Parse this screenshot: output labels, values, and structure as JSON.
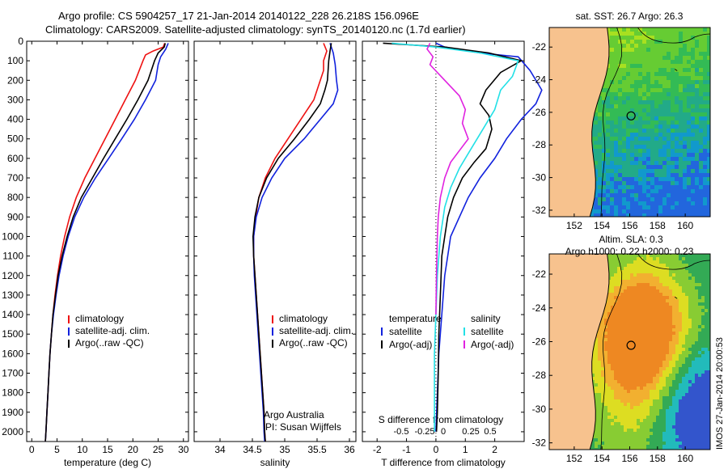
{
  "header": {
    "line1": "Argo profile: CS 5904257_17 21-Jan-2014 20140122_228 26.218S 156.096E",
    "line2": "Climatology: CARS2009. Satellite-adjusted climatology: synTS_20140120.nc (1.7d earlier)"
  },
  "colors": {
    "climatology": "#ee1111",
    "satellite": "#1122dd",
    "argo": "#000000",
    "salinity_sat": "#22e0e6",
    "salinity_argo": "#e022e0"
  },
  "chart_data": [
    {
      "id": "temperature",
      "type": "line",
      "xlabel": "temperature (deg C)",
      "xlim": [
        -1,
        31
      ],
      "xticks": [
        0,
        5,
        10,
        15,
        20,
        25,
        30
      ],
      "ylim": [
        0,
        2050
      ],
      "yticks": [
        0,
        100,
        200,
        300,
        400,
        500,
        600,
        700,
        800,
        900,
        1000,
        1100,
        1200,
        1300,
        1400,
        1500,
        1600,
        1700,
        1800,
        1900,
        2000
      ],
      "legend": [
        "climatology",
        "satellite-adj. clim.",
        "Argo(..raw -QC)"
      ],
      "series": [
        {
          "name": "climatology",
          "color": "#ee1111",
          "points": [
            [
              26.3,
              10
            ],
            [
              26.0,
              30
            ],
            [
              24.0,
              50
            ],
            [
              22.5,
              70
            ],
            [
              22.0,
              100
            ],
            [
              20.5,
              200
            ],
            [
              18.5,
              300
            ],
            [
              16.5,
              400
            ],
            [
              14.5,
              500
            ],
            [
              12.5,
              600
            ],
            [
              10.5,
              700
            ],
            [
              8.8,
              800
            ],
            [
              7.5,
              900
            ],
            [
              6.5,
              1000
            ],
            [
              5.7,
              1100
            ],
            [
              5.1,
              1200
            ],
            [
              4.6,
              1300
            ],
            [
              4.2,
              1400
            ],
            [
              3.9,
              1500
            ],
            [
              3.6,
              1600
            ],
            [
              3.4,
              1700
            ],
            [
              3.2,
              1800
            ],
            [
              3.0,
              1900
            ],
            [
              2.8,
              2000
            ],
            [
              2.7,
              2050
            ]
          ]
        },
        {
          "name": "satellite-adj. clim.",
          "color": "#1122dd",
          "points": [
            [
              27.0,
              10
            ],
            [
              26.5,
              40
            ],
            [
              25.5,
              80
            ],
            [
              25.0,
              120
            ],
            [
              24.5,
              200
            ],
            [
              22.5,
              300
            ],
            [
              20.3,
              400
            ],
            [
              17.8,
              500
            ],
            [
              15.2,
              600
            ],
            [
              12.6,
              700
            ],
            [
              10.3,
              800
            ],
            [
              8.5,
              900
            ],
            [
              7.2,
              1000
            ],
            [
              6.2,
              1100
            ],
            [
              5.4,
              1200
            ],
            [
              4.8,
              1300
            ],
            [
              4.3,
              1400
            ],
            [
              3.9,
              1500
            ],
            [
              3.6,
              1600
            ],
            [
              3.4,
              1700
            ],
            [
              3.2,
              1800
            ],
            [
              3.0,
              1900
            ],
            [
              2.8,
              2000
            ],
            [
              2.7,
              2050
            ]
          ]
        },
        {
          "name": "Argo(..raw -QC)",
          "color": "#000000",
          "points": [
            [
              26.4,
              10
            ],
            [
              26.2,
              30
            ],
            [
              25.0,
              60
            ],
            [
              24.3,
              100
            ],
            [
              23.0,
              200
            ],
            [
              21.0,
              300
            ],
            [
              18.8,
              400
            ],
            [
              16.5,
              500
            ],
            [
              14.2,
              600
            ],
            [
              12.0,
              700
            ],
            [
              9.8,
              800
            ],
            [
              8.2,
              900
            ],
            [
              7.0,
              1000
            ],
            [
              6.0,
              1100
            ],
            [
              5.2,
              1200
            ],
            [
              4.7,
              1300
            ],
            [
              4.2,
              1400
            ],
            [
              3.9,
              1500
            ],
            [
              3.6,
              1600
            ],
            [
              3.4,
              1700
            ],
            [
              3.2,
              1800
            ],
            [
              3.0,
              1900
            ],
            [
              2.8,
              2000
            ],
            [
              2.7,
              2050
            ]
          ]
        }
      ]
    },
    {
      "id": "salinity",
      "type": "line",
      "xlabel": "salinity",
      "xlim": [
        33.6,
        36.1
      ],
      "xticks": [
        34,
        34.5,
        35,
        35.5,
        36
      ],
      "ylim": [
        0,
        2050
      ],
      "legend": [
        "climatology",
        "satellite-adj. clim.",
        "Argo(..raw -QC)"
      ],
      "annotation": {
        "line1": "Argo Australia",
        "line2": "PI: Susan Wijffels"
      },
      "series": [
        {
          "name": "climatology",
          "color": "#ee1111",
          "points": [
            [
              35.6,
              10
            ],
            [
              35.65,
              50
            ],
            [
              35.6,
              100
            ],
            [
              35.6,
              150
            ],
            [
              35.55,
              200
            ],
            [
              35.45,
              300
            ],
            [
              35.25,
              400
            ],
            [
              35.05,
              500
            ],
            [
              34.85,
              600
            ],
            [
              34.7,
              700
            ],
            [
              34.6,
              800
            ],
            [
              34.55,
              900
            ],
            [
              34.52,
              1000
            ],
            [
              34.52,
              1100
            ],
            [
              34.54,
              1200
            ],
            [
              34.56,
              1300
            ],
            [
              34.58,
              1400
            ],
            [
              34.6,
              1500
            ],
            [
              34.62,
              1600
            ],
            [
              34.64,
              1700
            ],
            [
              34.66,
              1800
            ],
            [
              34.68,
              1900
            ],
            [
              34.69,
              2000
            ],
            [
              34.7,
              2050
            ]
          ]
        },
        {
          "name": "satellite-adj. clim.",
          "color": "#1122dd",
          "points": [
            [
              35.7,
              10
            ],
            [
              35.75,
              60
            ],
            [
              35.78,
              120
            ],
            [
              35.8,
              200
            ],
            [
              35.82,
              250
            ],
            [
              35.75,
              320
            ],
            [
              35.55,
              400
            ],
            [
              35.3,
              500
            ],
            [
              35.0,
              600
            ],
            [
              34.8,
              700
            ],
            [
              34.65,
              800
            ],
            [
              34.56,
              900
            ],
            [
              34.52,
              1000
            ],
            [
              34.52,
              1100
            ],
            [
              34.53,
              1200
            ],
            [
              34.55,
              1300
            ],
            [
              34.57,
              1400
            ],
            [
              34.59,
              1500
            ],
            [
              34.61,
              1600
            ],
            [
              34.63,
              1700
            ],
            [
              34.65,
              1800
            ],
            [
              34.67,
              1900
            ],
            [
              34.68,
              2000
            ],
            [
              34.69,
              2050
            ]
          ]
        },
        {
          "name": "Argo(..raw -QC)",
          "color": "#000000",
          "points": [
            [
              35.72,
              10
            ],
            [
              35.7,
              50
            ],
            [
              35.68,
              100
            ],
            [
              35.66,
              200
            ],
            [
              35.62,
              250
            ],
            [
              35.55,
              320
            ],
            [
              35.38,
              400
            ],
            [
              35.15,
              500
            ],
            [
              34.9,
              600
            ],
            [
              34.72,
              700
            ],
            [
              34.6,
              800
            ],
            [
              34.54,
              900
            ],
            [
              34.51,
              1000
            ],
            [
              34.52,
              1100
            ],
            [
              34.54,
              1200
            ],
            [
              34.56,
              1300
            ],
            [
              34.58,
              1400
            ],
            [
              34.6,
              1500
            ],
            [
              34.62,
              1600
            ],
            [
              34.64,
              1700
            ],
            [
              34.66,
              1800
            ],
            [
              34.68,
              1900
            ],
            [
              34.69,
              2000
            ],
            [
              34.7,
              2050
            ]
          ]
        }
      ]
    },
    {
      "id": "difference",
      "type": "line",
      "xlabel": "T difference from climatology",
      "xlabel_top": "S difference from climatology",
      "xlim": [
        -2.5,
        3
      ],
      "xticks": [
        -2,
        -1,
        0,
        1,
        2
      ],
      "xticks_top": [
        "-0.5",
        "-0.25",
        "0",
        "0.25",
        "0.5"
      ],
      "ylim": [
        0,
        2050
      ],
      "legend": {
        "t_head": "temperature",
        "s_head": "salinity",
        "sat": "satellite",
        "argo": "Argo(-adj)"
      },
      "series": [
        {
          "name": "T satellite",
          "color": "#1122dd",
          "points": [
            [
              0.0,
              10
            ],
            [
              0.3,
              30
            ],
            [
              1.5,
              60
            ],
            [
              2.8,
              80
            ],
            [
              3.2,
              150
            ],
            [
              3.6,
              250
            ],
            [
              3.4,
              320
            ],
            [
              2.9,
              400
            ],
            [
              2.4,
              500
            ],
            [
              2.0,
              600
            ],
            [
              1.5,
              700
            ],
            [
              1.1,
              800
            ],
            [
              0.8,
              900
            ],
            [
              0.5,
              1000
            ],
            [
              0.4,
              1100
            ],
            [
              0.3,
              1200
            ],
            [
              0.2,
              1400
            ],
            [
              0.1,
              1600
            ],
            [
              0.05,
              1800
            ],
            [
              0.0,
              2000
            ]
          ]
        },
        {
          "name": "T Argo(-adj)",
          "color": "#000000",
          "points": [
            [
              -1.8,
              10
            ],
            [
              0.3,
              30
            ],
            [
              1.8,
              60
            ],
            [
              2.9,
              100
            ],
            [
              2.2,
              160
            ],
            [
              1.7,
              250
            ],
            [
              1.5,
              320
            ],
            [
              1.8,
              380
            ],
            [
              1.9,
              450
            ],
            [
              1.7,
              550
            ],
            [
              1.3,
              620
            ],
            [
              0.9,
              700
            ],
            [
              0.6,
              800
            ],
            [
              0.4,
              900
            ],
            [
              0.3,
              1000
            ],
            [
              0.2,
              1100
            ],
            [
              0.15,
              1300
            ],
            [
              0.1,
              1500
            ],
            [
              0.08,
              1700
            ],
            [
              0.05,
              1900
            ],
            [
              0.02,
              2000
            ]
          ]
        },
        {
          "name": "S satellite",
          "color": "#22e0e6",
          "points": [
            [
              -1.5,
              10
            ],
            [
              0.0,
              30
            ],
            [
              1.5,
              60
            ],
            [
              2.8,
              100
            ],
            [
              2.6,
              180
            ],
            [
              2.2,
              250
            ],
            [
              2.0,
              350
            ],
            [
              1.6,
              450
            ],
            [
              1.2,
              550
            ],
            [
              0.8,
              650
            ],
            [
              0.5,
              750
            ],
            [
              0.3,
              850
            ],
            [
              0.15,
              1000
            ],
            [
              0.05,
              1200
            ],
            [
              0.0,
              1400
            ],
            [
              -0.05,
              1600
            ],
            [
              -0.05,
              1800
            ],
            [
              -0.05,
              2000
            ]
          ]
        },
        {
          "name": "S Argo(-adj)",
          "color": "#e022e0",
          "points": [
            [
              -0.2,
              10
            ],
            [
              -0.3,
              40
            ],
            [
              -0.1,
              80
            ],
            [
              -0.2,
              120
            ],
            [
              0.3,
              200
            ],
            [
              0.8,
              280
            ],
            [
              1.0,
              350
            ],
            [
              0.9,
              420
            ],
            [
              1.1,
              500
            ],
            [
              0.8,
              560
            ],
            [
              0.5,
              620
            ],
            [
              0.3,
              700
            ],
            [
              0.15,
              800
            ],
            [
              0.08,
              900
            ],
            [
              0.05,
              1000
            ],
            [
              0.02,
              1200
            ],
            [
              0.0,
              1400
            ]
          ]
        }
      ]
    },
    {
      "id": "sst_map",
      "type": "heatmap",
      "title": "sat. SST: 26.7 Argo: 26.3",
      "xticks": [
        152,
        154,
        156,
        158,
        160
      ],
      "yticks": [
        -22,
        -24,
        -26,
        -28,
        -30,
        -32
      ],
      "xlim": [
        150.2,
        161.8
      ],
      "ylim": [
        -32.4,
        -20.8
      ],
      "marker": {
        "lon": 156.096,
        "lat": -26.218
      }
    },
    {
      "id": "sla_map",
      "type": "heatmap",
      "title_line1": "Altim. SLA: 0.3",
      "title_line2": "Argo h1000: 0.22 h2000: 0.23",
      "xticks": [
        152,
        154,
        156,
        158,
        160
      ],
      "yticks": [
        -22,
        -24,
        -26,
        -28,
        -30,
        -32
      ],
      "xlim": [
        150.2,
        161.8
      ],
      "ylim": [
        -32.4,
        -20.8
      ],
      "marker": {
        "lon": 156.096,
        "lat": -26.218
      }
    }
  ],
  "footer": {
    "stamp": "IMOS 27-Jan-2014 20:00:53"
  }
}
